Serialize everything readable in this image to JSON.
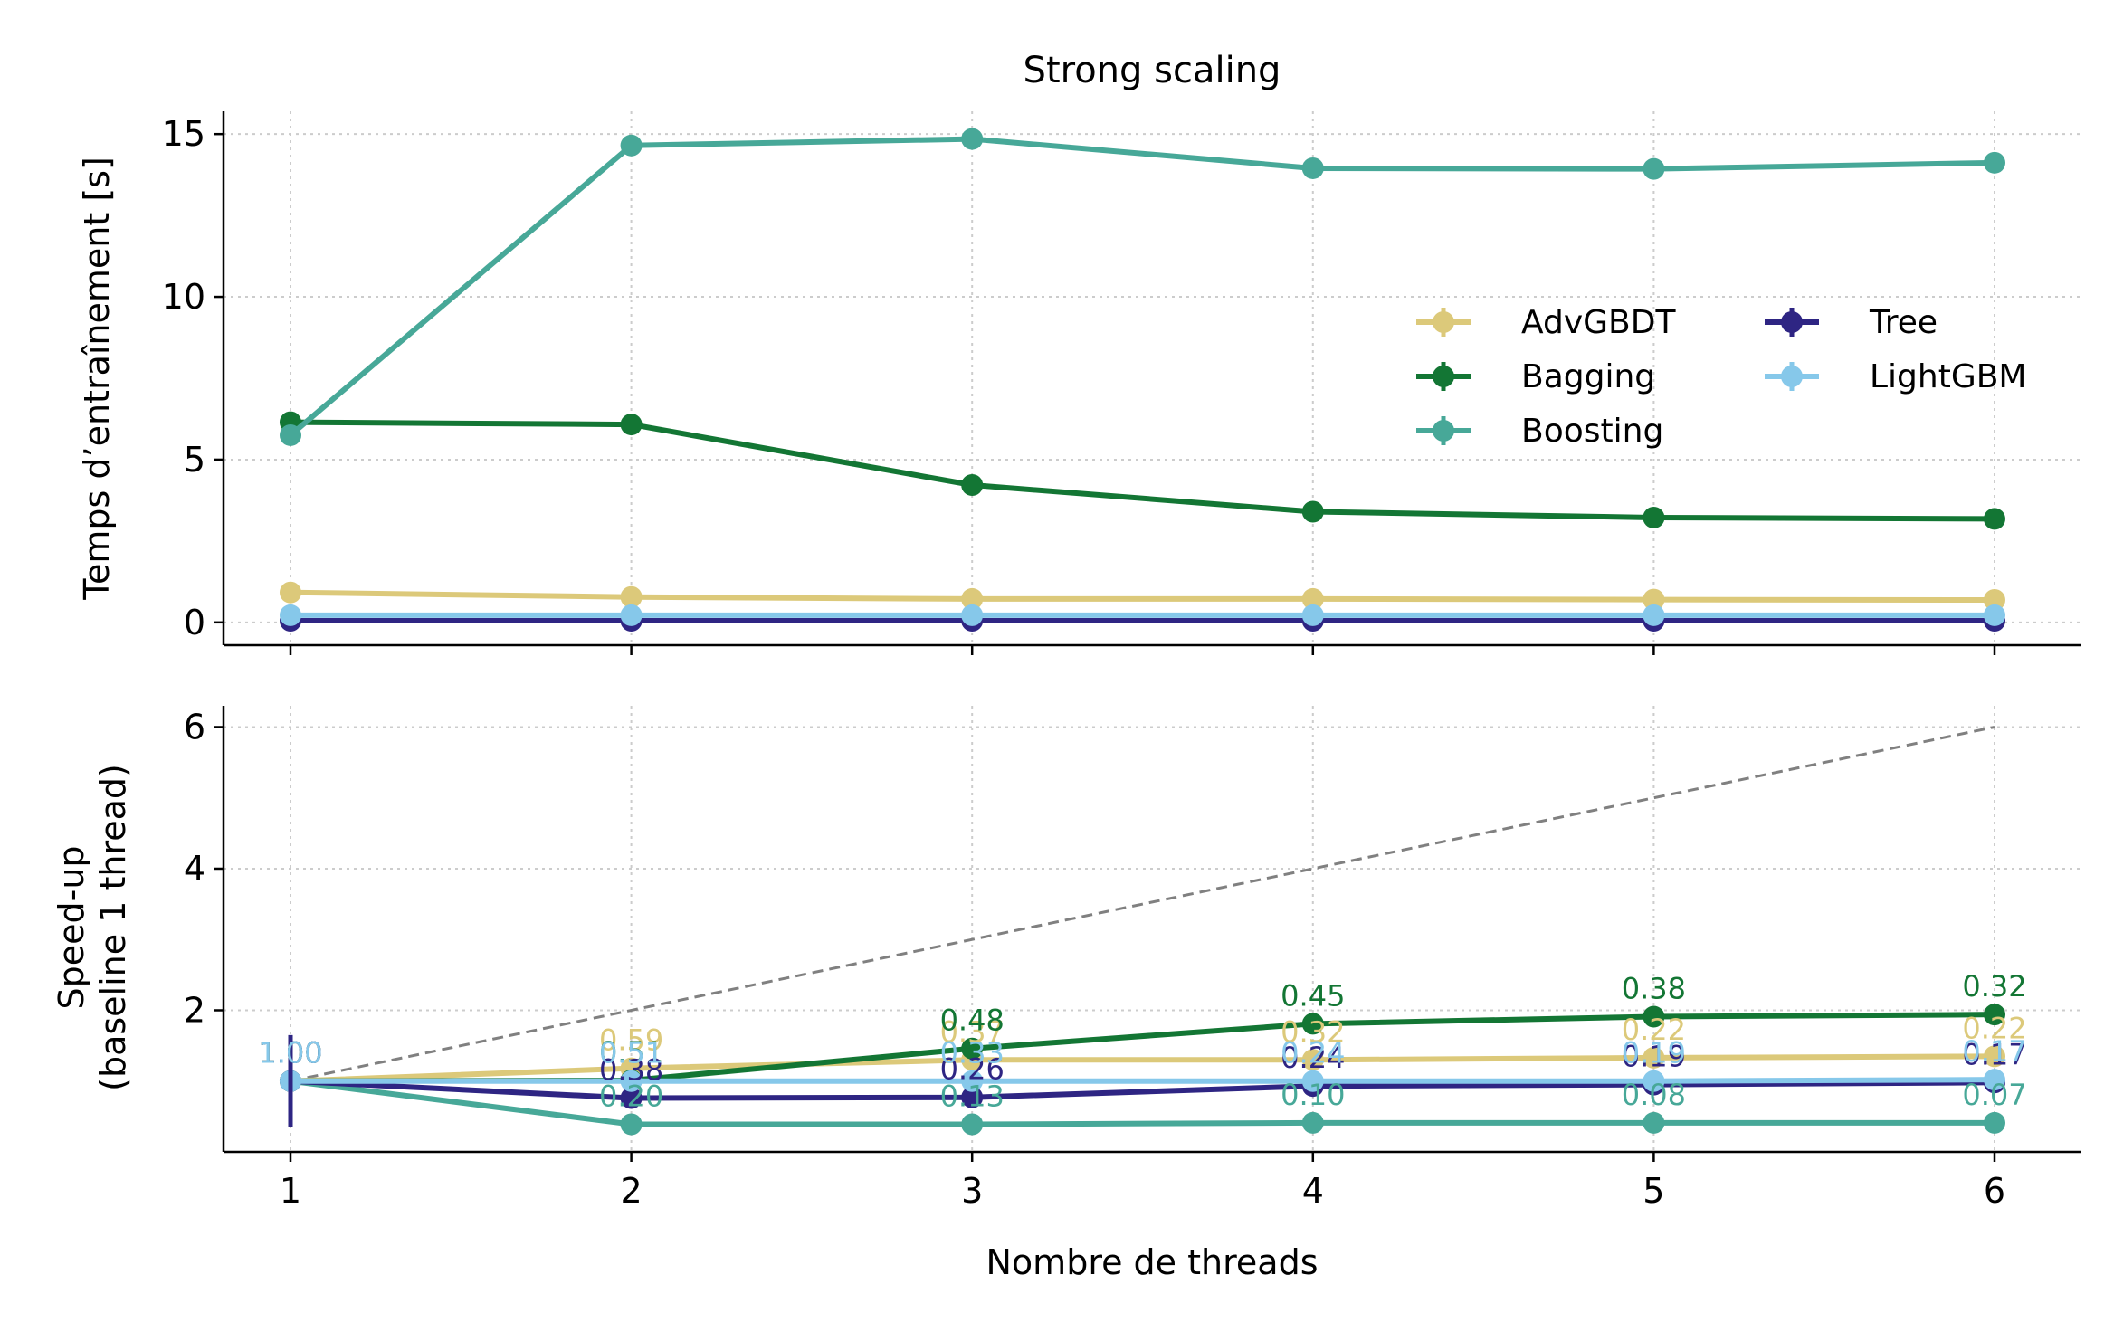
{
  "chart_data": [
    {
      "type": "line",
      "title": "Strong scaling",
      "ylabel": "Temps d’entraînement [s]",
      "xlabel": "",
      "x": [
        1,
        2,
        3,
        4,
        5,
        6
      ],
      "xticks": [
        "1",
        "2",
        "3",
        "4",
        "5",
        "6"
      ],
      "ylim": [
        -0.7,
        15.7
      ],
      "yticks": [
        0,
        5,
        10,
        15
      ],
      "yticklabels": [
        "0",
        "5",
        "10",
        "15"
      ],
      "grid": true,
      "legend_position": "center-right",
      "series": [
        {
          "name": "AdvGBDT",
          "color": "#DCC97A",
          "values": [
            0.92,
            0.78,
            0.72,
            0.72,
            0.7,
            0.69
          ]
        },
        {
          "name": "Bagging",
          "color": "#137634",
          "values": [
            6.15,
            6.08,
            4.22,
            3.4,
            3.22,
            3.18
          ]
        },
        {
          "name": "Boosting",
          "color": "#47A898",
          "values": [
            5.75,
            14.65,
            14.85,
            13.95,
            13.93,
            14.12
          ]
        },
        {
          "name": "Tree",
          "color": "#2E2583",
          "values": [
            0.05,
            0.05,
            0.05,
            0.05,
            0.05,
            0.05
          ]
        },
        {
          "name": "LightGBM",
          "color": "#86C8EA",
          "values": [
            0.22,
            0.22,
            0.22,
            0.22,
            0.22,
            0.22
          ]
        }
      ]
    },
    {
      "type": "line",
      "title": "",
      "ylabel": "Speed-up\n(baseline 1 thread)",
      "xlabel": "Nombre de threads",
      "x": [
        1,
        2,
        3,
        4,
        5,
        6
      ],
      "xticks": [
        "1",
        "2",
        "3",
        "4",
        "5",
        "6"
      ],
      "ylim": [
        0.0,
        6.3
      ],
      "yticks": [
        2,
        4,
        6
      ],
      "yticklabels": [
        "2",
        "4",
        "6"
      ],
      "grid": true,
      "ideal_line": {
        "style": "dashed",
        "color": "#808080",
        "x": [
          1,
          6
        ],
        "y": [
          1,
          6
        ]
      },
      "series": [
        {
          "name": "AdvGBDT",
          "color": "#DCC97A",
          "values": [
            1.0,
            1.18,
            1.3,
            1.3,
            1.33,
            1.35
          ],
          "labels": [
            "1.00",
            "0.59",
            "0.37",
            "0.32",
            "0.22",
            "0.22"
          ]
        },
        {
          "name": "Bagging",
          "color": "#137634",
          "values": [
            1.0,
            1.01,
            1.46,
            1.81,
            1.91,
            1.94
          ],
          "labels": [
            "1.00",
            "0.51",
            "0.48",
            "0.45",
            "0.38",
            "0.32"
          ]
        },
        {
          "name": "Boosting",
          "color": "#47A898",
          "values": [
            1.0,
            0.39,
            0.39,
            0.41,
            0.41,
            0.41
          ],
          "labels": [
            "1.00",
            "0.20",
            "0.13",
            "0.10",
            "0.08",
            "0.07"
          ]
        },
        {
          "name": "Tree",
          "color": "#2E2583",
          "values": [
            1.0,
            0.76,
            0.77,
            0.93,
            0.95,
            0.98
          ],
          "labels": [
            "1.00",
            "0.38",
            "0.26",
            "0.24",
            "0.19",
            "0.17"
          ]
        },
        {
          "name": "LightGBM",
          "color": "#86C8EA",
          "values": [
            1.0,
            1.0,
            1.0,
            1.0,
            1.0,
            1.02
          ],
          "labels": [
            "1.00",
            "0.51",
            "0.33",
            "0.24",
            "0.19",
            "0.17"
          ]
        }
      ]
    }
  ]
}
